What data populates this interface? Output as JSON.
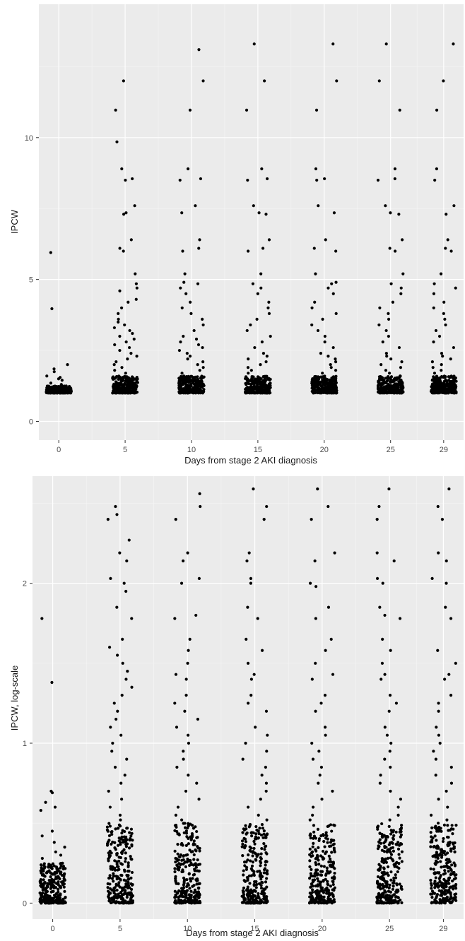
{
  "chart_data": [
    {
      "type": "scatter",
      "style": "ggplot2 jitter strip plot",
      "xlabel": "Days from stage 2 AKI diagnosis",
      "ylabel": "IPCW",
      "x_ticks": [
        0,
        5,
        10,
        15,
        20,
        25,
        29
      ],
      "x_tick_labels": [
        "0",
        "5",
        "10",
        "15",
        "20",
        "25",
        "29"
      ],
      "y_ticks": [
        0,
        5,
        10
      ],
      "y_tick_labels": [
        "0",
        "5",
        "10"
      ],
      "xlim": [
        -1.5,
        30.5
      ],
      "ylim": [
        -0.66,
        14.7
      ],
      "grid": true,
      "panel_background": "#ebebeb",
      "grid_color": "#ffffff",
      "point_color": "#000000",
      "series": [
        {
          "day": 0,
          "dense_min": 1.0,
          "dense_max": 1.25,
          "sparse_values": [
            1.3,
            1.35,
            1.45,
            1.5,
            1.55,
            1.6,
            1.75,
            1.85,
            2.0,
            3.97,
            5.95
          ]
        },
        {
          "day": 5,
          "dense_min": 1.0,
          "dense_max": 1.6,
          "sparse_values": [
            1.7,
            1.8,
            1.9,
            2.0,
            2.1,
            2.2,
            2.3,
            2.4,
            2.5,
            2.6,
            2.7,
            2.8,
            2.9,
            3.0,
            3.1,
            3.2,
            3.3,
            3.4,
            3.5,
            3.6,
            3.8,
            4.0,
            4.2,
            4.3,
            4.6,
            4.7,
            4.85,
            5.2,
            6.0,
            6.1,
            6.4,
            7.3,
            7.35,
            7.6,
            8.5,
            8.55,
            8.9,
            9.85,
            10.97,
            12.0
          ]
        },
        {
          "day": 10,
          "dense_min": 1.0,
          "dense_max": 1.6,
          "sparse_values": [
            1.7,
            1.8,
            1.9,
            2.0,
            2.1,
            2.2,
            2.3,
            2.4,
            2.5,
            2.6,
            2.7,
            2.8,
            2.9,
            3.0,
            3.2,
            3.4,
            3.6,
            3.8,
            4.0,
            4.2,
            4.5,
            4.7,
            4.85,
            4.9,
            5.2,
            6.0,
            6.1,
            6.4,
            7.35,
            7.6,
            8.5,
            8.55,
            8.9,
            10.97,
            12.0,
            13.1
          ]
        },
        {
          "day": 15,
          "dense_min": 1.0,
          "dense_max": 1.6,
          "sparse_values": [
            1.7,
            1.8,
            1.9,
            2.0,
            2.1,
            2.2,
            2.3,
            2.4,
            2.6,
            2.8,
            3.0,
            3.2,
            3.4,
            3.6,
            3.8,
            4.0,
            4.2,
            4.5,
            4.7,
            4.85,
            5.2,
            6.0,
            6.1,
            6.4,
            7.3,
            7.35,
            7.6,
            8.5,
            8.55,
            8.9,
            10.97,
            12.0,
            13.3
          ]
        },
        {
          "day": 20,
          "dense_min": 1.0,
          "dense_max": 1.6,
          "sparse_values": [
            1.7,
            1.8,
            1.9,
            2.0,
            2.1,
            2.2,
            2.3,
            2.4,
            2.6,
            2.8,
            3.0,
            3.2,
            3.4,
            3.6,
            3.8,
            4.0,
            4.2,
            4.5,
            4.7,
            4.85,
            4.9,
            5.2,
            6.0,
            6.1,
            6.4,
            7.35,
            7.6,
            8.5,
            8.55,
            8.9,
            10.97,
            12.0,
            13.3
          ]
        },
        {
          "day": 25,
          "dense_min": 1.0,
          "dense_max": 1.6,
          "sparse_values": [
            1.7,
            1.8,
            1.9,
            2.0,
            2.1,
            2.2,
            2.3,
            2.4,
            2.6,
            2.8,
            3.0,
            3.2,
            3.4,
            3.6,
            3.8,
            4.0,
            4.2,
            4.5,
            4.7,
            4.85,
            5.2,
            6.0,
            6.1,
            6.4,
            7.3,
            7.35,
            7.6,
            8.5,
            8.55,
            8.9,
            10.97,
            12.0,
            13.3
          ]
        },
        {
          "day": 29,
          "dense_min": 1.0,
          "dense_max": 1.6,
          "sparse_values": [
            1.7,
            1.8,
            1.9,
            2.0,
            2.1,
            2.2,
            2.3,
            2.4,
            2.6,
            2.8,
            3.0,
            3.2,
            3.4,
            3.6,
            3.8,
            4.0,
            4.2,
            4.5,
            4.7,
            4.85,
            5.2,
            6.0,
            6.1,
            6.4,
            7.3,
            7.6,
            8.5,
            8.9,
            10.97,
            12.0,
            13.3
          ]
        }
      ]
    },
    {
      "type": "scatter",
      "style": "ggplot2 jitter strip plot",
      "xlabel": "Days from stage 2 AKI diagnosis",
      "ylabel": "IPCW, log-scale",
      "x_ticks": [
        0,
        5,
        10,
        15,
        20,
        25,
        29
      ],
      "x_tick_labels": [
        "0",
        "5",
        "10",
        "15",
        "20",
        "25",
        "29"
      ],
      "y_ticks": [
        0,
        1,
        2
      ],
      "y_tick_labels": [
        "0",
        "1",
        "2"
      ],
      "xlim": [
        -1.5,
        30.5
      ],
      "ylim": [
        -0.1,
        2.67
      ],
      "grid": true,
      "panel_background": "#ebebeb",
      "grid_color": "#ffffff",
      "point_color": "#000000",
      "series": [
        {
          "day": 0,
          "dense_min": 0.0,
          "dense_max": 0.25,
          "sparse_values": [
            0.28,
            0.3,
            0.32,
            0.35,
            0.38,
            0.42,
            0.45,
            0.58,
            0.6,
            0.63,
            0.69,
            0.7,
            1.38,
            1.78
          ]
        },
        {
          "day": 5,
          "dense_min": 0.0,
          "dense_max": 0.5,
          "sparse_values": [
            0.52,
            0.55,
            0.6,
            0.65,
            0.7,
            0.75,
            0.8,
            0.85,
            0.9,
            0.95,
            1.0,
            1.05,
            1.1,
            1.15,
            1.2,
            1.25,
            1.3,
            1.35,
            1.4,
            1.45,
            1.5,
            1.55,
            1.6,
            1.65,
            1.78,
            1.85,
            1.95,
            2.0,
            2.03,
            2.14,
            2.19,
            2.27,
            2.4,
            2.43,
            2.48
          ]
        },
        {
          "day": 10,
          "dense_min": 0.0,
          "dense_max": 0.5,
          "sparse_values": [
            0.52,
            0.55,
            0.6,
            0.65,
            0.7,
            0.75,
            0.8,
            0.85,
            0.9,
            0.95,
            1.0,
            1.05,
            1.1,
            1.15,
            1.2,
            1.25,
            1.3,
            1.4,
            1.43,
            1.5,
            1.58,
            1.65,
            1.78,
            1.8,
            2.0,
            2.03,
            2.14,
            2.19,
            2.4,
            2.48,
            2.56
          ]
        },
        {
          "day": 15,
          "dense_min": 0.0,
          "dense_max": 0.5,
          "sparse_values": [
            0.52,
            0.55,
            0.6,
            0.65,
            0.7,
            0.75,
            0.8,
            0.85,
            0.9,
            0.95,
            1.0,
            1.05,
            1.1,
            1.2,
            1.25,
            1.3,
            1.4,
            1.43,
            1.5,
            1.58,
            1.65,
            1.78,
            1.85,
            2.0,
            2.03,
            2.14,
            2.19,
            2.4,
            2.48,
            2.59
          ]
        },
        {
          "day": 20,
          "dense_min": 0.0,
          "dense_max": 0.5,
          "sparse_values": [
            0.52,
            0.55,
            0.6,
            0.65,
            0.7,
            0.75,
            0.8,
            0.85,
            0.9,
            0.95,
            1.0,
            1.05,
            1.1,
            1.2,
            1.25,
            1.3,
            1.4,
            1.43,
            1.5,
            1.58,
            1.65,
            1.78,
            1.85,
            1.98,
            2.0,
            2.14,
            2.19,
            2.4,
            2.48,
            2.59
          ]
        },
        {
          "day": 25,
          "dense_min": 0.0,
          "dense_max": 0.5,
          "sparse_values": [
            0.52,
            0.55,
            0.6,
            0.65,
            0.7,
            0.75,
            0.8,
            0.85,
            0.9,
            0.95,
            1.0,
            1.05,
            1.1,
            1.2,
            1.25,
            1.3,
            1.4,
            1.43,
            1.5,
            1.58,
            1.65,
            1.78,
            1.8,
            1.85,
            2.0,
            2.03,
            2.14,
            2.19,
            2.4,
            2.48,
            2.59
          ]
        },
        {
          "day": 29,
          "dense_min": 0.0,
          "dense_max": 0.5,
          "sparse_values": [
            0.52,
            0.55,
            0.6,
            0.65,
            0.7,
            0.75,
            0.8,
            0.85,
            0.9,
            0.95,
            1.0,
            1.05,
            1.1,
            1.2,
            1.25,
            1.3,
            1.4,
            1.43,
            1.5,
            1.58,
            1.78,
            1.85,
            2.0,
            2.03,
            2.14,
            2.19,
            2.4,
            2.48,
            2.59
          ]
        }
      ]
    }
  ]
}
